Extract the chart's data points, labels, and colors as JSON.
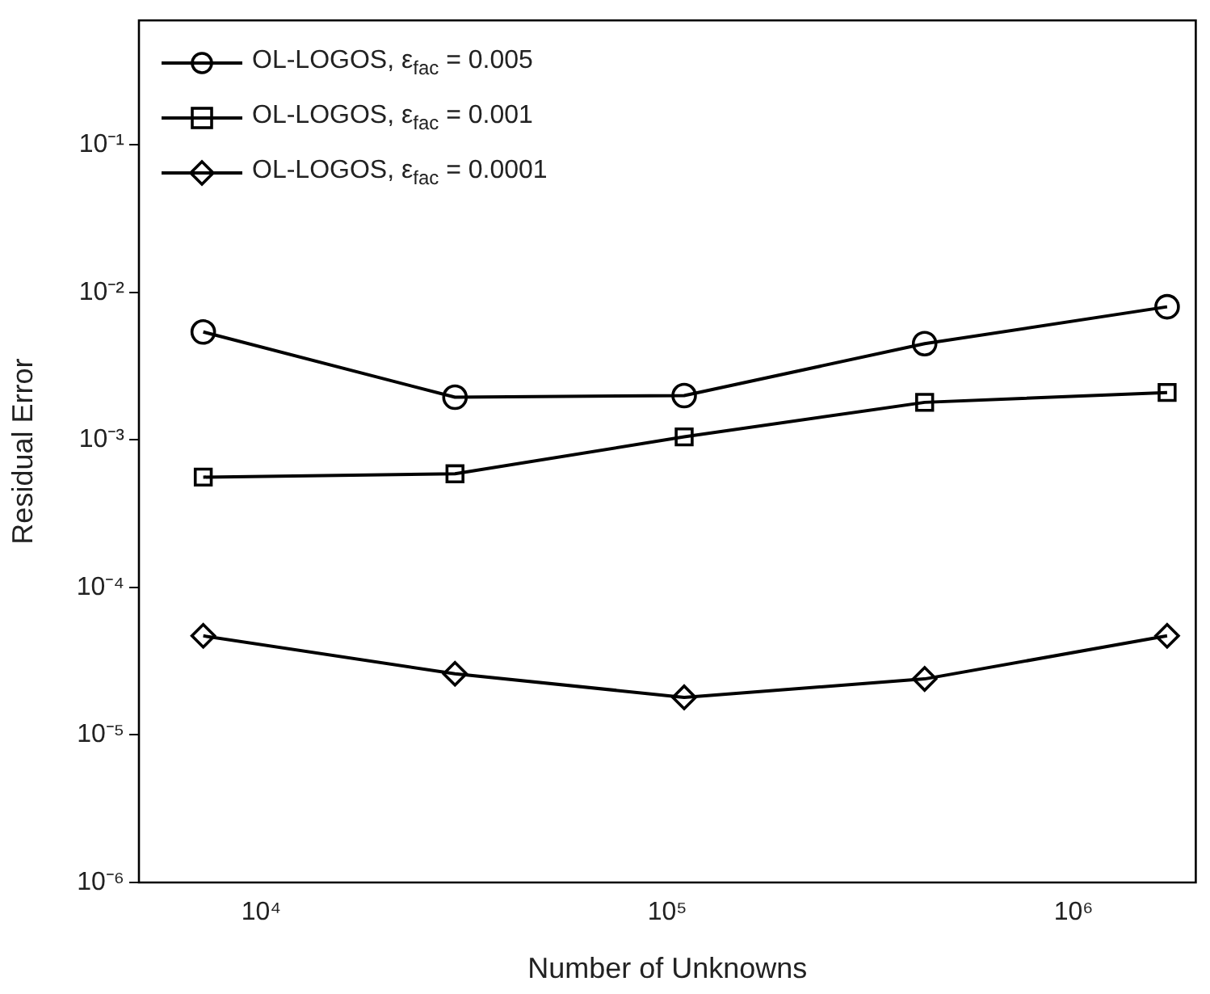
{
  "chart_data": {
    "type": "line",
    "xlabel": "Number of Unknowns",
    "ylabel": "Residual Error",
    "x": [
      7200,
      30000,
      110000,
      430000,
      1700000
    ],
    "series": [
      {
        "name": "OL-LOGOS, ε$_{fac}$ = 0.005",
        "color": "#000000",
        "marker": "circle",
        "values": [
          0.0054,
          0.00195,
          0.002,
          0.0045,
          0.008
        ]
      },
      {
        "name": "OL-LOGOS, ε$_{fac}$ = 0.001",
        "color": "#000000",
        "marker": "square",
        "values": [
          0.00056,
          0.00059,
          0.00105,
          0.0018,
          0.0021
        ]
      },
      {
        "name": "OL-LOGOS, ε$_{fac}$ = 0.0001",
        "color": "#000000",
        "marker": "diamond",
        "values": [
          4.7e-05,
          2.6e-05,
          1.8e-05,
          2.4e-05,
          4.7e-05
        ]
      }
    ],
    "log": "xy",
    "xlim": [
      5000,
      2000000
    ],
    "ylim": [
      1e-06,
      0.7
    ],
    "xticks": [
      {
        "value": 10000,
        "label": "10⁴"
      },
      {
        "value": 100000,
        "label": "10⁵"
      },
      {
        "value": 1000000,
        "label": "10⁶"
      }
    ],
    "yticks": [
      {
        "value": 1e-06,
        "label": "10⁻⁶"
      },
      {
        "value": 1e-05,
        "label": "10⁻⁵"
      },
      {
        "value": 0.0001,
        "label": "10⁻⁴"
      },
      {
        "value": 0.001,
        "label": "10⁻³"
      },
      {
        "value": 0.01,
        "label": "10⁻²"
      },
      {
        "value": 0.1,
        "label": "10⁻¹"
      }
    ],
    "grid": false,
    "legend": "top left",
    "line_style": "solid"
  }
}
